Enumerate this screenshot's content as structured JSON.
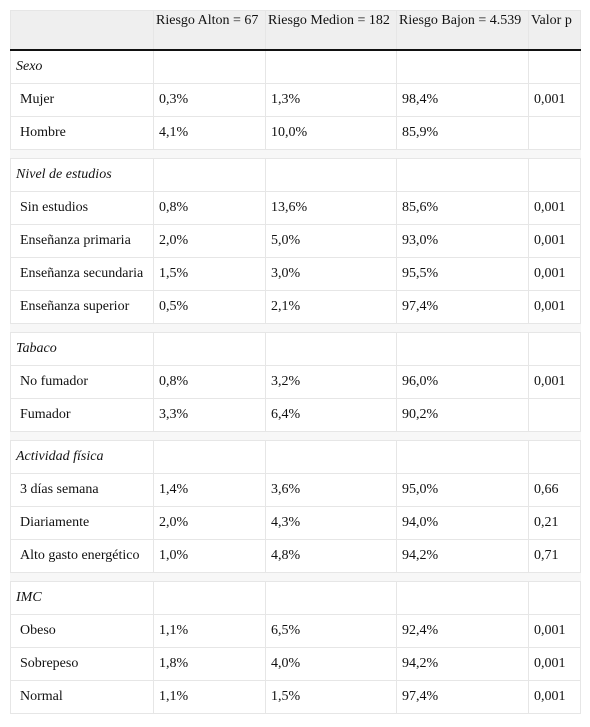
{
  "table": {
    "headers": [
      "",
      "Riesgo Alton = 67",
      "Riesgo Medion = 182",
      "Riesgo Bajon = 4.539",
      "Valor p"
    ],
    "groups": [
      {
        "title": "Sexo",
        "rows": [
          [
            "Mujer",
            "0,3%",
            "1,3%",
            "98,4%",
            "0,001"
          ],
          [
            "Hombre",
            "4,1%",
            "10,0%",
            "85,9%",
            ""
          ]
        ]
      },
      {
        "title": "Nivel de estudios",
        "rows": [
          [
            "Sin estudios",
            "0,8%",
            "13,6%",
            "85,6%",
            "0,001"
          ],
          [
            "Enseñanza primaria",
            "2,0%",
            "5,0%",
            "93,0%",
            "0,001"
          ],
          [
            "Enseñanza secundaria",
            "1,5%",
            "3,0%",
            "95,5%",
            "0,001"
          ],
          [
            "Enseñanza superior",
            "0,5%",
            "2,1%",
            "97,4%",
            "0,001"
          ]
        ]
      },
      {
        "title": "Tabaco",
        "rows": [
          [
            "No fumador",
            "0,8%",
            "3,2%",
            "96,0%",
            "0,001"
          ],
          [
            "Fumador",
            "3,3%",
            "6,4%",
            "90,2%",
            ""
          ]
        ]
      },
      {
        "title": "Actividad física",
        "rows": [
          [
            "3 días semana",
            "1,4%",
            "3,6%",
            "95,0%",
            "0,66"
          ],
          [
            "Diariamente",
            "2,0%",
            "4,3%",
            "94,0%",
            "0,21"
          ],
          [
            "Alto gasto energético",
            "1,0%",
            "4,8%",
            "94,2%",
            "0,71"
          ]
        ]
      },
      {
        "title": "IMC",
        "rows": [
          [
            "Obeso",
            "1,1%",
            "6,5%",
            "92,4%",
            "0,001"
          ],
          [
            "Sobrepeso",
            "1,8%",
            "4,0%",
            "94,2%",
            "0,001"
          ],
          [
            "Normal",
            "1,1%",
            "1,5%",
            "97,4%",
            "0,001"
          ]
        ]
      }
    ]
  }
}
